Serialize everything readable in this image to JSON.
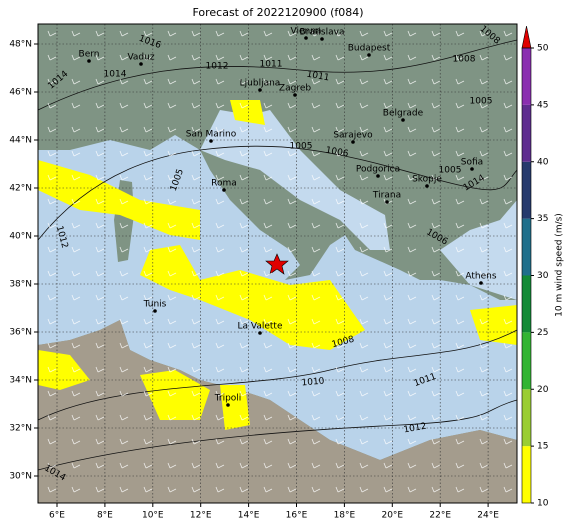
{
  "title": "Forecast of 2022120900 (f084)",
  "map": {
    "lon_ticks": [
      {
        "value": 6,
        "label": "6°E"
      },
      {
        "value": 8,
        "label": "8°E"
      },
      {
        "value": 10,
        "label": "10°E"
      },
      {
        "value": 12,
        "label": "12°E"
      },
      {
        "value": 14,
        "label": "14°E"
      },
      {
        "value": 16,
        "label": "16°E"
      },
      {
        "value": 18,
        "label": "18°E"
      },
      {
        "value": 20,
        "label": "20°E"
      },
      {
        "value": 22,
        "label": "22°E"
      },
      {
        "value": 24,
        "label": "24°E"
      }
    ],
    "lat_ticks": [
      {
        "value": 30,
        "label": "30°N"
      },
      {
        "value": 32,
        "label": "32°N"
      },
      {
        "value": 34,
        "label": "34°N"
      },
      {
        "value": 36,
        "label": "36°N"
      },
      {
        "value": 38,
        "label": "38°N"
      },
      {
        "value": 40,
        "label": "40°N"
      },
      {
        "value": 42,
        "label": "42°N"
      },
      {
        "value": 44,
        "label": "44°N"
      },
      {
        "value": 46,
        "label": "46°N"
      },
      {
        "value": 48,
        "label": "48°N"
      }
    ],
    "cities": [
      "Bern",
      "Vaduz",
      "Vienna",
      "Bratislava",
      "Budapest",
      "Ljubljana",
      "Zagreb",
      "San Marino",
      "Belgrade",
      "Sarajevo",
      "Roma",
      "Podgorica",
      "Skopje",
      "Tirana",
      "Sofia",
      "Athens",
      "Tunis",
      "La Valette",
      "Tripoli"
    ],
    "isobar_labels": [
      "1016",
      "1012",
      "1014",
      "1014",
      "1011",
      "1011",
      "1008",
      "1005",
      "1005",
      "1006",
      "1005",
      "1014",
      "1005",
      "1012",
      "1006",
      "1008",
      "1010",
      "1011",
      "1012",
      "1014",
      "1008"
    ]
  },
  "colorbar": {
    "label": "10 m wind speed (m/s)",
    "ticks": [
      10,
      15,
      20,
      25,
      30,
      35,
      40,
      45,
      50
    ],
    "colors": [
      "#ffff00",
      "#9acd32",
      "#32b432",
      "#138a36",
      "#1f6f8b",
      "#263a6d",
      "#5e2d8f",
      "#8a2fb0"
    ],
    "extend_color": "#e00000"
  }
}
